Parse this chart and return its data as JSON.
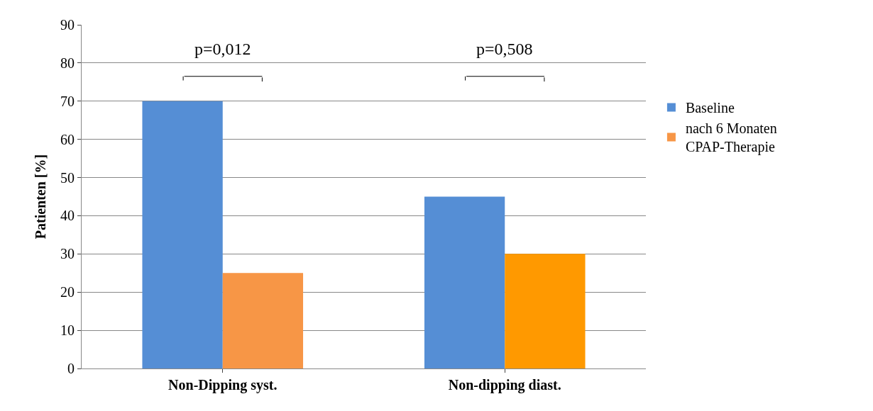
{
  "chart_data": {
    "type": "bar",
    "categories": [
      "Non-Dipping syst.",
      "Non-dipping diast."
    ],
    "ylabel": "Patienten [%]",
    "series": [
      {
        "name": "Baseline",
        "color": "#558ed5",
        "values": [
          70,
          45
        ]
      },
      {
        "name": "nach 6 Monaten CPAP-Therapie",
        "color": "#f79646",
        "colors": [
          "#f79646",
          "#ff9900"
        ],
        "values": [
          25,
          30
        ]
      }
    ],
    "annotations": [
      "p=0,012",
      "p=0,508"
    ],
    "ylim": [
      0,
      90
    ],
    "yticks": [
      0,
      10,
      20,
      30,
      40,
      50,
      60,
      70,
      80,
      90
    ],
    "grid": "y",
    "legend": "right"
  }
}
